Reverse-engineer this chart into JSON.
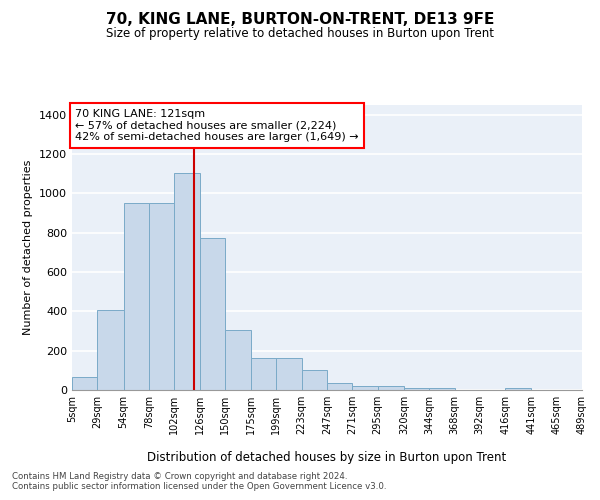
{
  "title": "70, KING LANE, BURTON-ON-TRENT, DE13 9FE",
  "subtitle": "Size of property relative to detached houses in Burton upon Trent",
  "xlabel": "Distribution of detached houses by size in Burton upon Trent",
  "ylabel": "Number of detached properties",
  "footnote1": "Contains HM Land Registry data © Crown copyright and database right 2024.",
  "footnote2": "Contains public sector information licensed under the Open Government Licence v3.0.",
  "annotation_line1": "70 KING LANE: 121sqm",
  "annotation_line2": "← 57% of detached houses are smaller (2,224)",
  "annotation_line3": "42% of semi-detached houses are larger (1,649) →",
  "property_size": 121,
  "bar_color": "#c8d8ea",
  "bar_edge_color": "#7aaac8",
  "vline_color": "#cc0000",
  "bg_color": "#eaf0f8",
  "grid_color": "#ffffff",
  "bins": [
    5,
    29,
    54,
    78,
    102,
    126,
    150,
    175,
    199,
    223,
    247,
    271,
    295,
    320,
    344,
    368,
    392,
    416,
    441,
    465,
    489
  ],
  "counts": [
    65,
    405,
    950,
    950,
    1105,
    775,
    305,
    165,
    165,
    100,
    35,
    18,
    20,
    12,
    10,
    0,
    0,
    12,
    0,
    0
  ],
  "tick_labels": [
    "5sqm",
    "29sqm",
    "54sqm",
    "78sqm",
    "102sqm",
    "126sqm",
    "150sqm",
    "175sqm",
    "199sqm",
    "223sqm",
    "247sqm",
    "271sqm",
    "295sqm",
    "320sqm",
    "344sqm",
    "368sqm",
    "392sqm",
    "416sqm",
    "441sqm",
    "465sqm",
    "489sqm"
  ],
  "ylim": [
    0,
    1450
  ],
  "yticks": [
    0,
    200,
    400,
    600,
    800,
    1000,
    1200,
    1400
  ]
}
